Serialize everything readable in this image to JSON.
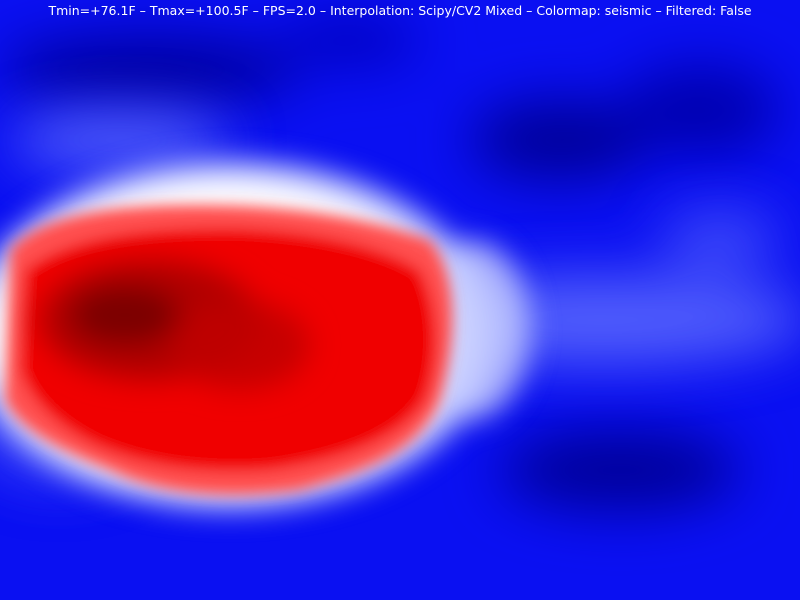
{
  "overlay": {
    "tmin": "Tmin=+76.1F",
    "tmax": "Tmax=+100.5F",
    "fps": "FPS=2.0",
    "interpolation": "Interpolation: Scipy/CV2 Mixed",
    "colormap": "Colormap: seismic",
    "filtered": "Filtered: False",
    "separator": " – "
  },
  "heatmap": {
    "colormap": "seismic",
    "colors": {
      "cold": "#00004c",
      "cool": "#0000ff",
      "neutral": "#ffffff",
      "warm": "#ff0000",
      "hot": "#800000"
    }
  }
}
